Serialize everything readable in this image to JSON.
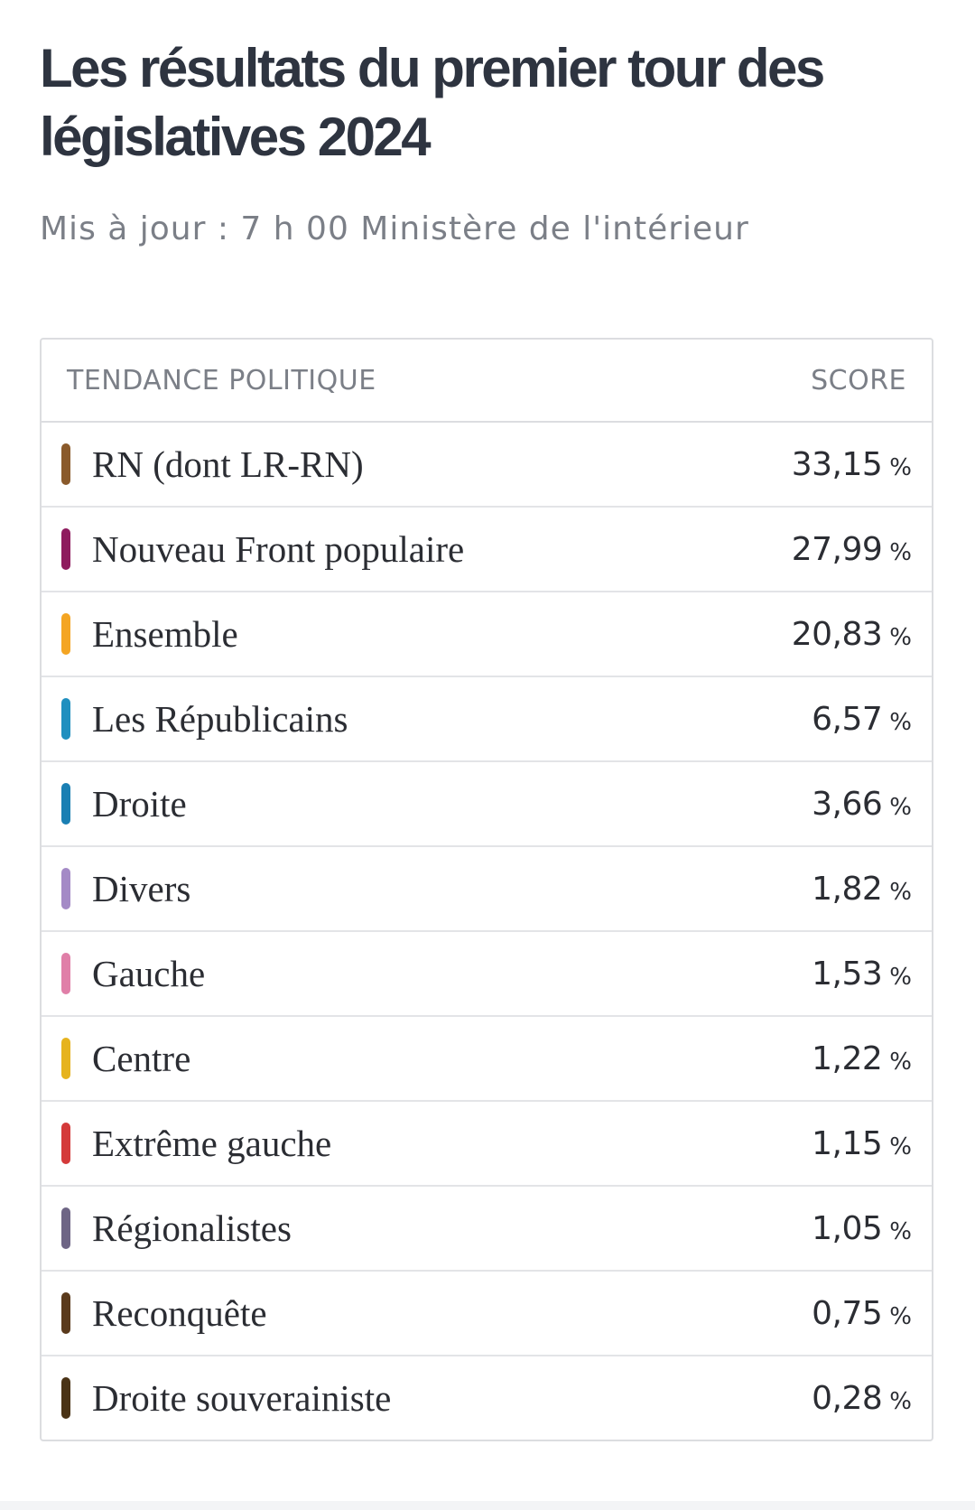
{
  "header": {
    "title": "Les résultats du premier tour des législatives 2024",
    "subtitle": "Mis à jour : 7 h 00 Ministère de l'intérieur"
  },
  "table": {
    "columns": {
      "party": "TENDANCE POLITIQUE",
      "score": "SCORE"
    },
    "unit": "%",
    "rows": [
      {
        "party": "RN (dont LR-RN)",
        "score": "33,15",
        "color": "#8a5a2b"
      },
      {
        "party": "Nouveau Front populaire",
        "score": "27,99",
        "color": "#8e1b5e"
      },
      {
        "party": "Ensemble",
        "score": "20,83",
        "color": "#f4a523"
      },
      {
        "party": "Les Républicains",
        "score": "6,57",
        "color": "#1f8fbf"
      },
      {
        "party": "Droite",
        "score": "3,66",
        "color": "#1a7fb3"
      },
      {
        "party": "Divers",
        "score": "1,82",
        "color": "#a48ac6"
      },
      {
        "party": "Gauche",
        "score": "1,53",
        "color": "#e07fa8"
      },
      {
        "party": "Centre",
        "score": "1,22",
        "color": "#e6b31e"
      },
      {
        "party": "Extrême gauche",
        "score": "1,15",
        "color": "#d43a3a"
      },
      {
        "party": "Régionalistes",
        "score": "1,05",
        "color": "#6e6585"
      },
      {
        "party": "Reconquête",
        "score": "0,75",
        "color": "#5a3a1c"
      },
      {
        "party": "Droite souverainiste",
        "score": "0,28",
        "color": "#4a3316"
      }
    ]
  }
}
